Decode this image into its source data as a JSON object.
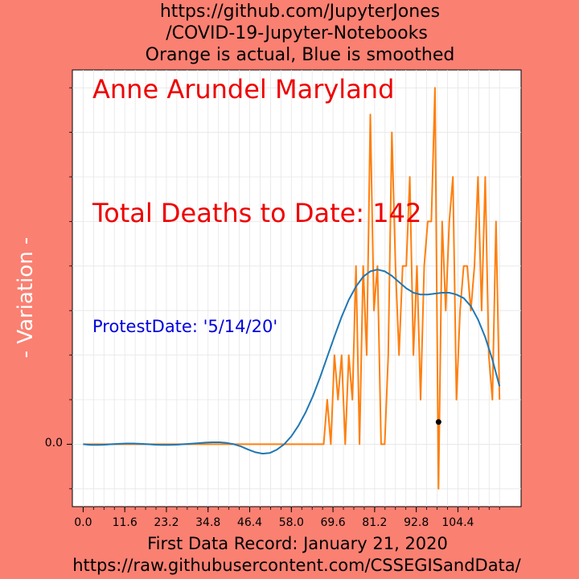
{
  "header": {
    "title_lines": [
      "https://github.com/JupyterJones",
      "/COVID-19-Jupyter-Notebooks",
      "Orange is actual, Blue is smoothed"
    ]
  },
  "annotations": {
    "location": "Anne Arundel Maryland",
    "total_deaths": "Total Deaths to Date: 142",
    "protest_date": "ProtestDate:  '5/14/20'"
  },
  "axes": {
    "ylabel": "- Variation -",
    "xlabel_lines": [
      "First Data Record: January 21, 2020",
      "https://raw.githubusercontent.com/CSSEGISandData/"
    ],
    "x_tick_labels": [
      "0.0",
      "11.6",
      "23.2",
      "34.8",
      "46.4",
      "58.0",
      "69.6",
      "81.2",
      "92.8",
      "104.4"
    ],
    "y_tick_label": "0.0"
  },
  "colors": {
    "background": "#fa8072",
    "plot_background": "#ffffff",
    "actual": "#ff7f0e",
    "smoothed": "#1f77b4",
    "location_text": "#ee0000",
    "deaths_text": "#ee0000",
    "protest_text": "#0000dd",
    "marker": "#000000"
  },
  "chart_data": {
    "type": "line",
    "xlim": [
      -3,
      122
    ],
    "ylim": [
      -0.07,
      0.42
    ],
    "x_ticks": [
      0,
      11.6,
      23.2,
      34.8,
      46.4,
      58.0,
      69.6,
      81.2,
      92.8,
      104.4
    ],
    "grid": true,
    "marker_point": {
      "x": 99,
      "y": 0.025
    },
    "series": [
      {
        "role": "actual",
        "x": [
          0,
          1,
          2,
          3,
          4,
          5,
          6,
          7,
          8,
          9,
          10,
          11,
          12,
          13,
          14,
          15,
          16,
          17,
          18,
          19,
          20,
          21,
          22,
          23,
          24,
          25,
          26,
          27,
          28,
          29,
          30,
          31,
          32,
          33,
          34,
          35,
          36,
          37,
          38,
          39,
          40,
          41,
          42,
          43,
          44,
          45,
          46,
          47,
          48,
          49,
          50,
          51,
          52,
          53,
          54,
          55,
          56,
          57,
          58,
          59,
          60,
          61,
          62,
          63,
          64,
          65,
          66,
          67,
          68,
          69,
          70,
          71,
          72,
          73,
          74,
          75,
          76,
          77,
          78,
          79,
          80,
          81,
          82,
          83,
          84,
          85,
          86,
          87,
          88,
          89,
          90,
          91,
          92,
          93,
          94,
          95,
          96,
          97,
          98,
          99,
          100,
          101,
          102,
          103,
          104,
          105,
          106,
          107,
          108,
          109,
          110,
          111,
          112,
          113,
          114,
          115,
          116
        ],
        "values": [
          0,
          0,
          0,
          0,
          0,
          0,
          0,
          0,
          0,
          0,
          0,
          0,
          0,
          0,
          0,
          0,
          0,
          0,
          0,
          0,
          0,
          0,
          0,
          0,
          0,
          0,
          0,
          0,
          0,
          0,
          0,
          0,
          0,
          0,
          0,
          0,
          0,
          0,
          0,
          0,
          0,
          0,
          0,
          0,
          0,
          0,
          0,
          0,
          0,
          0,
          0,
          0,
          0,
          0,
          0,
          0,
          0,
          0,
          0,
          0,
          0,
          0,
          0,
          0,
          0,
          0,
          0,
          0,
          0.05,
          0,
          0.1,
          0.05,
          0.1,
          0,
          0.1,
          0.05,
          0.2,
          0,
          0.2,
          0.1,
          0.37,
          0.15,
          0.2,
          0,
          0,
          0.1,
          0.35,
          0.2,
          0.1,
          0.2,
          0.2,
          0.3,
          0.1,
          0.2,
          0.05,
          0.2,
          0.25,
          0.25,
          0.4,
          -0.05,
          0.25,
          0.15,
          0.25,
          0.3,
          0.05,
          0.15,
          0.2,
          0.2,
          0.15,
          0.2,
          0.3,
          0.15,
          0.3,
          0.1,
          0.05,
          0.25,
          0.05
        ]
      },
      {
        "role": "smoothed",
        "x": [
          0,
          2,
          4,
          6,
          8,
          10,
          12,
          14,
          16,
          18,
          20,
          22,
          24,
          26,
          28,
          30,
          32,
          34,
          36,
          38,
          40,
          42,
          44,
          46,
          48,
          50,
          52,
          54,
          56,
          58,
          60,
          62,
          64,
          66,
          68,
          70,
          72,
          74,
          76,
          78,
          80,
          82,
          84,
          86,
          88,
          90,
          92,
          94,
          96,
          98,
          100,
          102,
          104,
          106,
          108,
          110,
          112,
          114,
          116
        ],
        "values": [
          0,
          -0.0008,
          -0.0008,
          -0.0005,
          0,
          0.0005,
          0.0008,
          0.0008,
          0.0005,
          0,
          -0.0005,
          -0.0008,
          -0.0008,
          -0.0005,
          0,
          0.0006,
          0.0012,
          0.0018,
          0.0022,
          0.0022,
          0.0015,
          0,
          -0.0025,
          -0.006,
          -0.009,
          -0.0105,
          -0.0098,
          -0.006,
          0,
          0.009,
          0.021,
          0.036,
          0.054,
          0.075,
          0.098,
          0.121,
          0.143,
          0.162,
          0.177,
          0.188,
          0.194,
          0.196,
          0.194,
          0.189,
          0.182,
          0.175,
          0.17,
          0.168,
          0.168,
          0.169,
          0.17,
          0.17,
          0.168,
          0.164,
          0.155,
          0.14,
          0.12,
          0.095,
          0.065
        ]
      }
    ]
  }
}
